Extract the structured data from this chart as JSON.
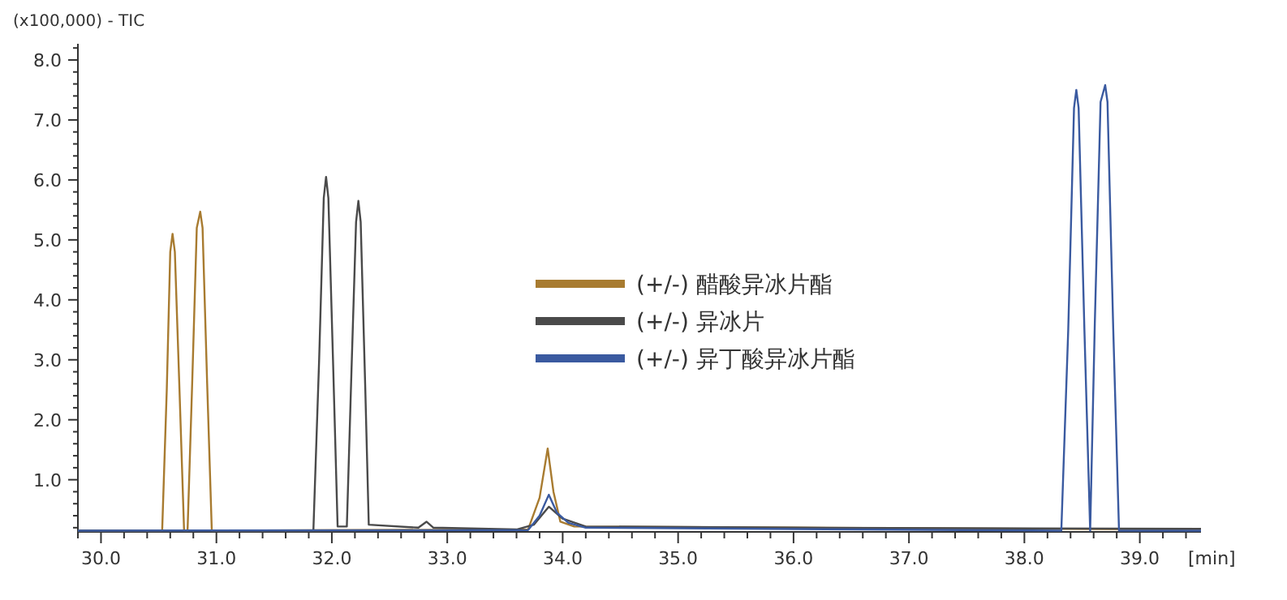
{
  "chart_data": {
    "type": "line",
    "ylabel": "(x100,000) - TIC",
    "xlabel": "[min]",
    "legend": "center",
    "marker": "none",
    "line_style": "solid",
    "xlim": [
      29.8,
      39.53
    ],
    "ylim": [
      0.13,
      8.27
    ],
    "xticks": [
      {
        "value": 29.8,
        "label": null
      },
      {
        "value": 30,
        "label": "30.0"
      },
      {
        "value": 30.2,
        "label": null
      },
      {
        "value": 30.4,
        "label": null
      },
      {
        "value": 30.6,
        "label": null
      },
      {
        "value": 30.8,
        "label": null
      },
      {
        "value": 31,
        "label": "31.0"
      },
      {
        "value": 31.2,
        "label": null
      },
      {
        "value": 31.4,
        "label": null
      },
      {
        "value": 31.6,
        "label": null
      },
      {
        "value": 31.8,
        "label": null
      },
      {
        "value": 32,
        "label": "32.0"
      },
      {
        "value": 32.2,
        "label": null
      },
      {
        "value": 32.4,
        "label": null
      },
      {
        "value": 32.6,
        "label": null
      },
      {
        "value": 32.8,
        "label": null
      },
      {
        "value": 33,
        "label": "33.0"
      },
      {
        "value": 33.2,
        "label": null
      },
      {
        "value": 33.4,
        "label": null
      },
      {
        "value": 33.6,
        "label": null
      },
      {
        "value": 33.8,
        "label": null
      },
      {
        "value": 34,
        "label": "34.0"
      },
      {
        "value": 34.2,
        "label": null
      },
      {
        "value": 34.4,
        "label": null
      },
      {
        "value": 34.6,
        "label": null
      },
      {
        "value": 34.8,
        "label": null
      },
      {
        "value": 35,
        "label": "35.0"
      },
      {
        "value": 35.2,
        "label": null
      },
      {
        "value": 35.4,
        "label": null
      },
      {
        "value": 35.6,
        "label": null
      },
      {
        "value": 35.8,
        "label": null
      },
      {
        "value": 36,
        "label": "36.0"
      },
      {
        "value": 36.2,
        "label": null
      },
      {
        "value": 36.4,
        "label": null
      },
      {
        "value": 36.6,
        "label": null
      },
      {
        "value": 36.8,
        "label": null
      },
      {
        "value": 37,
        "label": "37.0"
      },
      {
        "value": 37.2,
        "label": null
      },
      {
        "value": 37.4,
        "label": null
      },
      {
        "value": 37.6,
        "label": null
      },
      {
        "value": 37.8,
        "label": null
      },
      {
        "value": 38,
        "label": "38.0"
      },
      {
        "value": 38.2,
        "label": null
      },
      {
        "value": 38.4,
        "label": null
      },
      {
        "value": 38.6,
        "label": null
      },
      {
        "value": 38.8,
        "label": null
      },
      {
        "value": 39,
        "label": "39.0"
      },
      {
        "value": 39.2,
        "label": null
      },
      {
        "value": 39.4,
        "label": null
      }
    ],
    "yticks": [
      {
        "value": 0.2,
        "label": null
      },
      {
        "value": 0.4,
        "label": null
      },
      {
        "value": 0.6,
        "label": null
      },
      {
        "value": 0.8,
        "label": null
      },
      {
        "value": 1,
        "label": "1.0"
      },
      {
        "value": 1.2,
        "label": null
      },
      {
        "value": 1.4,
        "label": null
      },
      {
        "value": 1.6,
        "label": null
      },
      {
        "value": 1.8,
        "label": null
      },
      {
        "value": 2,
        "label": "2.0"
      },
      {
        "value": 2.2,
        "label": null
      },
      {
        "value": 2.4,
        "label": null
      },
      {
        "value": 2.6,
        "label": null
      },
      {
        "value": 2.8,
        "label": null
      },
      {
        "value": 3,
        "label": "3.0"
      },
      {
        "value": 3.2,
        "label": null
      },
      {
        "value": 3.4,
        "label": null
      },
      {
        "value": 3.6,
        "label": null
      },
      {
        "value": 3.8,
        "label": null
      },
      {
        "value": 4,
        "label": "4.0"
      },
      {
        "value": 4.2,
        "label": null
      },
      {
        "value": 4.4,
        "label": null
      },
      {
        "value": 4.6,
        "label": null
      },
      {
        "value": 4.8,
        "label": null
      },
      {
        "value": 5,
        "label": "5.0"
      },
      {
        "value": 5.2,
        "label": null
      },
      {
        "value": 5.4,
        "label": null
      },
      {
        "value": 5.6,
        "label": null
      },
      {
        "value": 5.8,
        "label": null
      },
      {
        "value": 6,
        "label": "6.0"
      },
      {
        "value": 6.2,
        "label": null
      },
      {
        "value": 6.4,
        "label": null
      },
      {
        "value": 6.6,
        "label": null
      },
      {
        "value": 6.8,
        "label": null
      },
      {
        "value": 7,
        "label": "7.0"
      },
      {
        "value": 7.2,
        "label": null
      },
      {
        "value": 7.4,
        "label": null
      },
      {
        "value": 7.6,
        "label": null
      },
      {
        "value": 7.8,
        "label": null
      },
      {
        "value": 8,
        "label": "8.0"
      },
      {
        "value": 8.2,
        "label": null
      }
    ],
    "series": [
      {
        "name": "(+/-) 醋酸异冰片酯",
        "color": "#a87b30",
        "x": [
          29.8,
          30.53,
          30.57,
          30.6,
          30.62,
          30.64,
          30.68,
          30.72,
          30.75,
          30.79,
          30.83,
          30.86,
          30.88,
          30.92,
          30.96,
          33.7,
          33.8,
          33.87,
          33.92,
          33.98,
          34.1,
          36.0,
          39.53
        ],
        "values": [
          0.15,
          0.15,
          2.5,
          4.8,
          5.1,
          4.8,
          2.5,
          0.15,
          0.15,
          2.6,
          5.2,
          5.47,
          5.2,
          2.6,
          0.15,
          0.17,
          0.7,
          1.52,
          0.8,
          0.3,
          0.22,
          0.2,
          0.17
        ]
      },
      {
        "name": "(+/-) 异冰片",
        "color": "#4a4a4a",
        "x": [
          29.8,
          31.84,
          31.89,
          31.93,
          31.95,
          31.97,
          32.01,
          32.05,
          32.13,
          32.17,
          32.21,
          32.23,
          32.25,
          32.29,
          32.32,
          32.75,
          32.82,
          32.88,
          33.6,
          33.75,
          33.88,
          34.0,
          34.2,
          36.0,
          39.53
        ],
        "values": [
          0.15,
          0.15,
          3.0,
          5.7,
          6.05,
          5.7,
          3.0,
          0.22,
          0.22,
          2.8,
          5.3,
          5.65,
          5.3,
          2.5,
          0.25,
          0.2,
          0.3,
          0.2,
          0.17,
          0.25,
          0.55,
          0.35,
          0.22,
          0.2,
          0.18
        ]
      },
      {
        "name": "(+/-) 异丁酸异冰片酯",
        "color": "#3a5aa0",
        "x": [
          29.8,
          33.7,
          33.8,
          33.88,
          33.95,
          34.05,
          34.2,
          38.32,
          38.38,
          38.43,
          38.45,
          38.47,
          38.52,
          38.57,
          38.61,
          38.66,
          38.7,
          38.72,
          38.77,
          38.82,
          39.53
        ],
        "values": [
          0.15,
          0.16,
          0.4,
          0.75,
          0.45,
          0.28,
          0.2,
          0.15,
          3.5,
          7.2,
          7.5,
          7.2,
          3.5,
          0.15,
          3.6,
          7.3,
          7.58,
          7.3,
          3.5,
          0.15,
          0.15
        ]
      }
    ]
  }
}
